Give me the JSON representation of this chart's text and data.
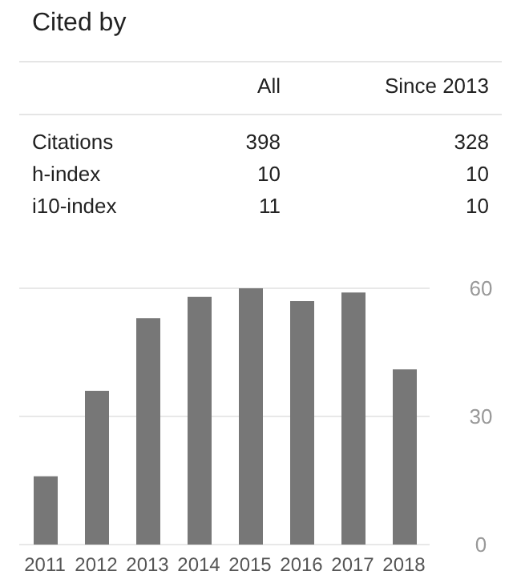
{
  "chart_data": {
    "type": "bar",
    "title": "Cited by",
    "annotations": [
      "All",
      "Since 2013",
      "Citations",
      "398",
      "328",
      "h-index",
      "10",
      "10",
      "i10-index",
      "11",
      "10"
    ],
    "categories": [
      "2011",
      "2012",
      "2013",
      "2014",
      "2015",
      "2016",
      "2017",
      "2018"
    ],
    "values": [
      16,
      36,
      53,
      58,
      60,
      57,
      59,
      41
    ],
    "color": "#777777",
    "ylim": [
      0,
      60
    ],
    "yticks": [
      0,
      30,
      60
    ],
    "grid": "y"
  }
}
